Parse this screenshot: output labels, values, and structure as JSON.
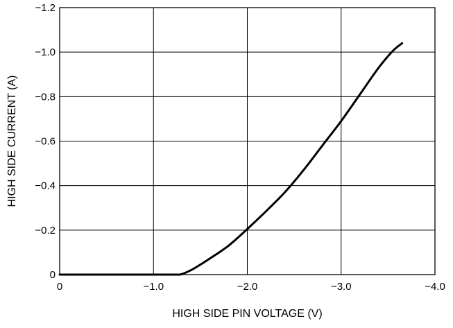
{
  "chart_data": {
    "type": "line",
    "title": "",
    "xlabel": "HIGH SIDE PIN VOLTAGE (V)",
    "ylabel": "HIGH SIDE CURRENT (A)",
    "xlim": [
      0,
      -4.0
    ],
    "ylim": [
      0,
      -1.2
    ],
    "x_ticks": [
      0,
      -1.0,
      -2.0,
      -3.0,
      -4.0
    ],
    "x_tick_labels": [
      "0",
      "−1.0",
      "−2.0",
      "−3.0",
      "−4.0"
    ],
    "y_ticks": [
      0,
      -0.2,
      -0.4,
      -0.6,
      -0.8,
      -1.0,
      -1.2
    ],
    "y_tick_labels": [
      "0",
      "−0.2",
      "−0.4",
      "−0.6",
      "−0.8",
      "−1.0",
      "−1.2"
    ],
    "grid": true,
    "series": [
      {
        "color": "#000000",
        "x": [
          0,
          -0.5,
          -1.0,
          -1.25,
          -1.3,
          -1.4,
          -1.5,
          -1.6,
          -1.8,
          -2.0,
          -2.2,
          -2.4,
          -2.6,
          -2.8,
          -3.0,
          -3.2,
          -3.4,
          -3.55,
          -3.65
        ],
        "y": [
          0,
          0,
          0,
          0,
          -0.002,
          -0.02,
          -0.045,
          -0.072,
          -0.13,
          -0.205,
          -0.285,
          -0.37,
          -0.47,
          -0.58,
          -0.69,
          -0.81,
          -0.93,
          -1.005,
          -1.04
        ]
      }
    ]
  }
}
